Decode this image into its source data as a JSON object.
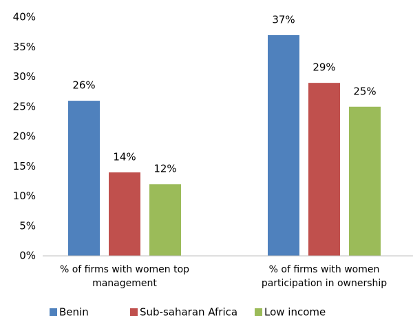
{
  "chart_data": {
    "type": "bar",
    "categories": [
      "% of firms with women top management",
      "% of firms with women participation in ownership"
    ],
    "series": [
      {
        "name": "Benin",
        "color": "#4f81bd",
        "values": [
          26,
          37
        ],
        "value_labels": [
          "26%",
          "37%"
        ]
      },
      {
        "name": "Sub-saharan Africa",
        "color": "#c0504d",
        "values": [
          14,
          29
        ],
        "value_labels": [
          "14%",
          "29%"
        ]
      },
      {
        "name": "Low income",
        "color": "#9bbb59",
        "values": [
          12,
          25
        ],
        "value_labels": [
          "12%",
          "25%"
        ]
      }
    ],
    "ylim": [
      0,
      40
    ],
    "yticks": [
      {
        "value": 0,
        "label": "0%"
      },
      {
        "value": 5,
        "label": "5%"
      },
      {
        "value": 10,
        "label": "10%"
      },
      {
        "value": 15,
        "label": "15%"
      },
      {
        "value": 20,
        "label": "20%"
      },
      {
        "value": 25,
        "label": "25%"
      },
      {
        "value": 30,
        "label": "30%"
      },
      {
        "value": 35,
        "label": "35%"
      },
      {
        "value": 40,
        "label": "40%"
      }
    ],
    "grid": false,
    "legend": "bottom"
  }
}
